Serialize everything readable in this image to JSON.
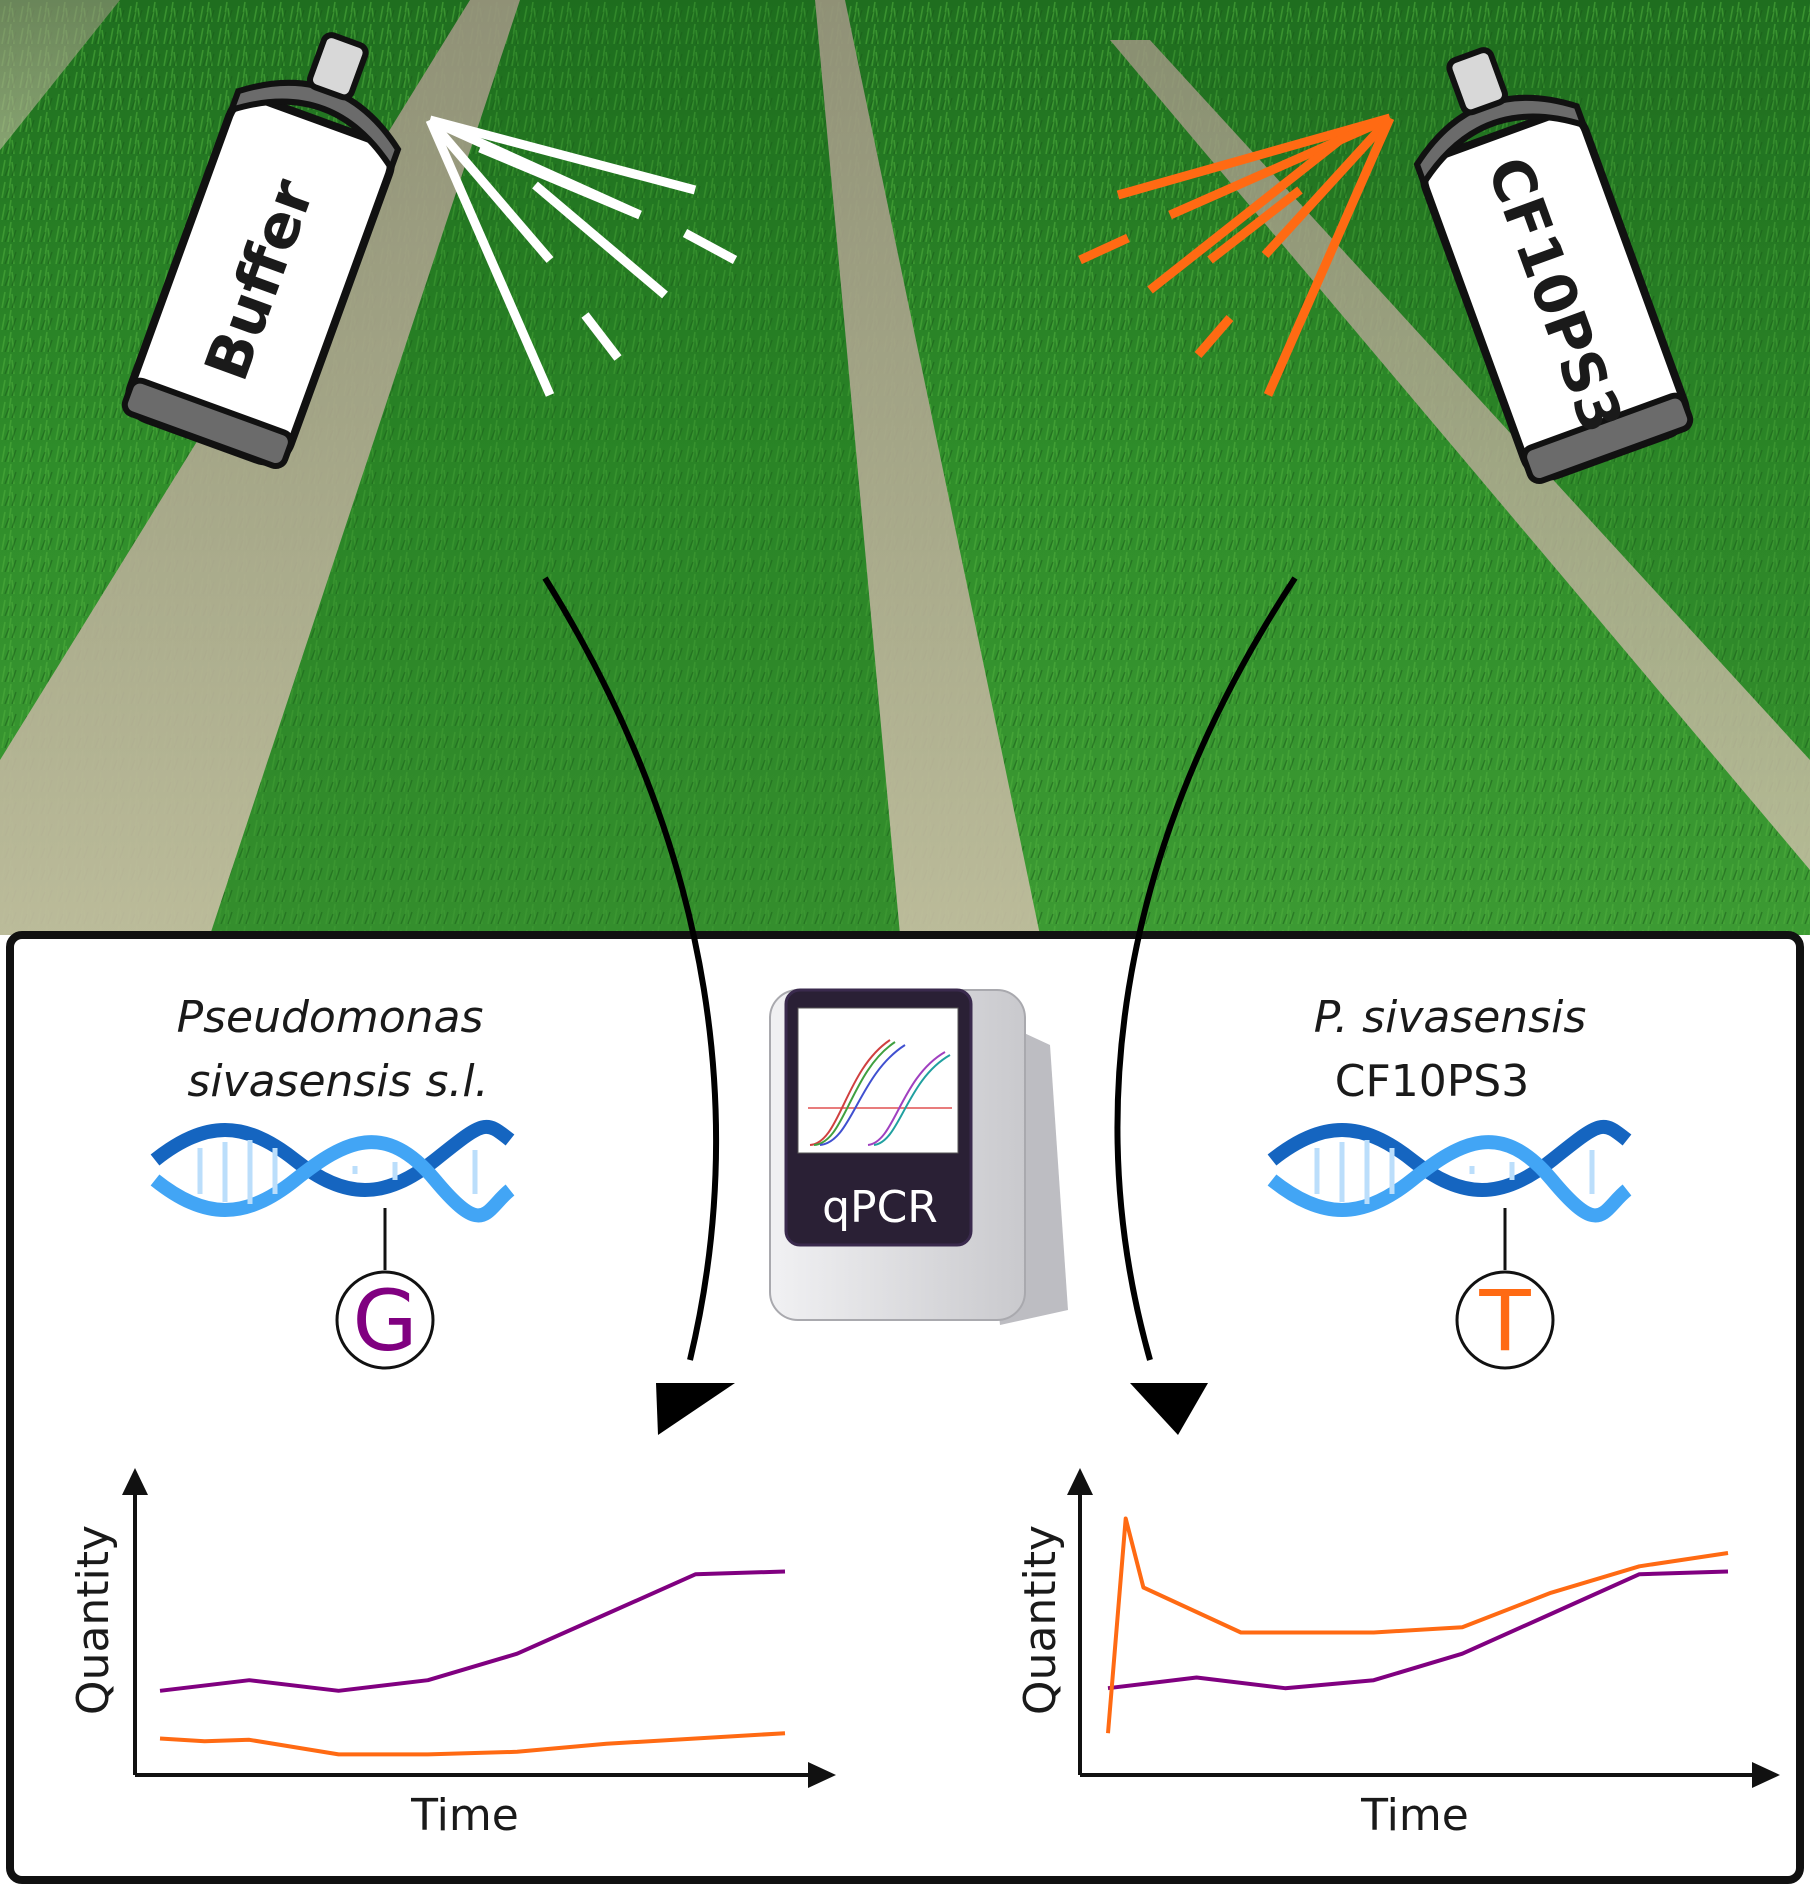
{
  "spray_cans": {
    "left": {
      "label": "Buffer",
      "spray_color": "#ffffff"
    },
    "right": {
      "label": "CF10PS3",
      "spray_color": "#ff6a13"
    }
  },
  "qpcr_machine": {
    "label": "qPCR"
  },
  "left_panel": {
    "organism_line1": "Pseudomonas",
    "organism_line2": "sivasensis s.l.",
    "base_letter": "G",
    "base_color": "#800080"
  },
  "right_panel": {
    "organism_line1": "P. sivasensis",
    "organism_line2": "CF10PS3",
    "base_letter": "T",
    "base_color": "#ff6a13"
  },
  "colors": {
    "field_green": "#2f8a2a",
    "soil": "#b8ac92",
    "dna_blue": "#1e88e5",
    "purple_series": "#800080",
    "orange_series": "#ff6a13"
  },
  "chart_data": [
    {
      "type": "line",
      "xlabel": "Time",
      "ylabel": "Quantity",
      "ylim": [
        0,
        100
      ],
      "series": [
        {
          "color": "#800080",
          "x": [
            0,
            1,
            2,
            3,
            4,
            5,
            6,
            7
          ],
          "values": [
            28,
            32,
            28,
            32,
            42,
            57,
            72,
            73
          ]
        },
        {
          "color": "#ff6a13",
          "x": [
            0,
            0.5,
            1,
            2,
            3,
            4,
            5,
            6,
            7
          ],
          "values": [
            10,
            9,
            9.5,
            4,
            4,
            5,
            8,
            10,
            12
          ]
        }
      ]
    },
    {
      "type": "line",
      "xlabel": "Time",
      "ylabel": "Quantity",
      "ylim": [
        0,
        100
      ],
      "series": [
        {
          "color": "#800080",
          "x": [
            0,
            1,
            2,
            3,
            4,
            5,
            6,
            7
          ],
          "values": [
            29,
            33,
            29,
            32,
            42,
            57,
            72,
            73
          ]
        },
        {
          "color": "#ff6a13",
          "x": [
            0,
            0.2,
            0.4,
            1.5,
            3,
            4,
            5,
            6,
            7
          ],
          "values": [
            12,
            93,
            67,
            50,
            50,
            52,
            65,
            75,
            80
          ]
        }
      ]
    }
  ]
}
